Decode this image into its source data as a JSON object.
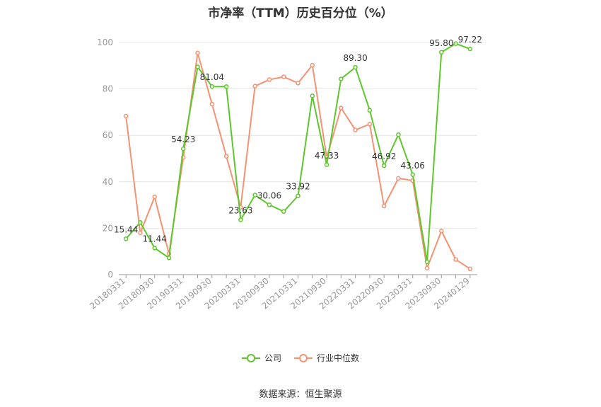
{
  "title": "市净率（TTM）历史百分位（%）",
  "source": "数据来源：恒生聚源",
  "colors": {
    "company": "#5ec72c",
    "industry": "#f59273",
    "grid": "#e6e6e6",
    "axis": "#999999"
  },
  "chart_data": {
    "type": "line",
    "title": "市净率（TTM）历史百分位（%）",
    "ylim": [
      0,
      100
    ],
    "yticks": [
      0,
      20,
      40,
      60,
      80,
      100
    ],
    "grid": true,
    "legend_position": "bottom",
    "x": [
      "20180331",
      "20180630",
      "20180930",
      "20181231",
      "20190331",
      "20190630",
      "20190930",
      "20191231",
      "20200331",
      "20200630",
      "20200930",
      "20201231",
      "20210331",
      "20210630",
      "20210930",
      "20211231",
      "20220331",
      "20220630",
      "20220930",
      "20221231",
      "20230331",
      "20230630",
      "20230930",
      "20231231",
      "20240129"
    ],
    "xtick_labels": [
      "20180331",
      "20180930",
      "20190331",
      "20190930",
      "20200331",
      "20200930",
      "20210331",
      "20210930",
      "20220331",
      "20220930",
      "20230331",
      "20230930",
      "20240129"
    ],
    "series": [
      {
        "name": "公司",
        "values": [
          15.44,
          22.5,
          11.44,
          7.2,
          54.23,
          89.5,
          81.04,
          81.0,
          23.63,
          34.3,
          30.06,
          27.2,
          33.92,
          77.0,
          47.33,
          84.3,
          89.3,
          70.8,
          46.92,
          60.3,
          43.06,
          5.5,
          95.8,
          99.5,
          97.22
        ],
        "labels": {
          "0": "15.44",
          "2": "11.44",
          "4": "54.23",
          "6": "81.04",
          "8": "23.63",
          "10": "30.06",
          "12": "33.92",
          "14": "47.33",
          "16": "89.30",
          "18": "46.92",
          "20": "43.06",
          "22": "95.80",
          "24": "97.22"
        }
      },
      {
        "name": "行业中位数",
        "values": [
          68.3,
          18.0,
          33.5,
          9.0,
          50.5,
          95.5,
          73.5,
          51.0,
          29.0,
          81.2,
          84.0,
          85.2,
          82.5,
          90.2,
          50.5,
          71.8,
          62.3,
          64.8,
          29.5,
          41.5,
          40.5,
          2.8,
          18.8,
          6.5,
          2.5
        ]
      }
    ]
  }
}
